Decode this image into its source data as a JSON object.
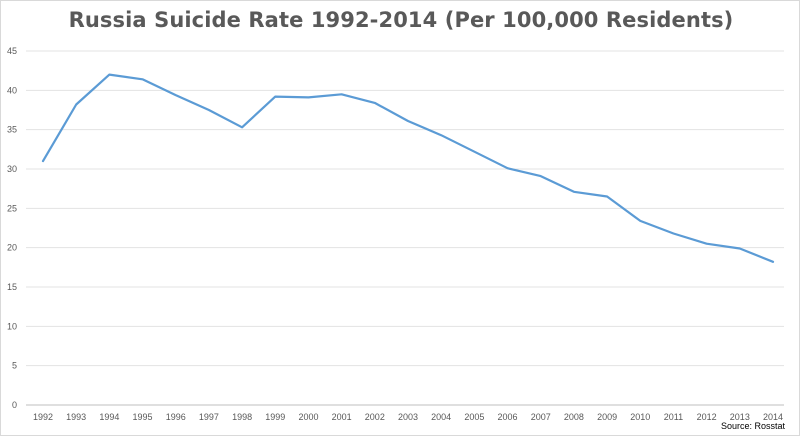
{
  "chart_data": {
    "type": "line",
    "title": "Russia Suicide Rate 1992-2014 (Per 100,000 Residents)",
    "xlabel": "",
    "ylabel": "",
    "ylim": [
      0,
      45
    ],
    "y_ticks": [
      "0",
      "5",
      "10",
      "15",
      "20",
      "25",
      "30",
      "35",
      "40",
      "45"
    ],
    "grid": true,
    "legend": "none",
    "categories": [
      "1992",
      "1993",
      "1994",
      "1995",
      "1996",
      "1997",
      "1998",
      "1999",
      "2000",
      "2001",
      "2002",
      "2003",
      "2004",
      "2005",
      "2006",
      "2007",
      "2008",
      "2009",
      "2010",
      "2011",
      "2012",
      "2013",
      "2014"
    ],
    "series": [
      {
        "color": "#5b9bd5",
        "values": [
          31.0,
          38.2,
          42.0,
          41.4,
          39.4,
          37.5,
          35.3,
          39.2,
          39.1,
          39.5,
          38.4,
          36.1,
          34.3,
          32.2,
          30.1,
          29.1,
          27.1,
          26.5,
          23.4,
          21.8,
          20.5,
          19.9,
          18.2
        ]
      }
    ],
    "annotations": {
      "source": "Source: Rosstat"
    }
  }
}
